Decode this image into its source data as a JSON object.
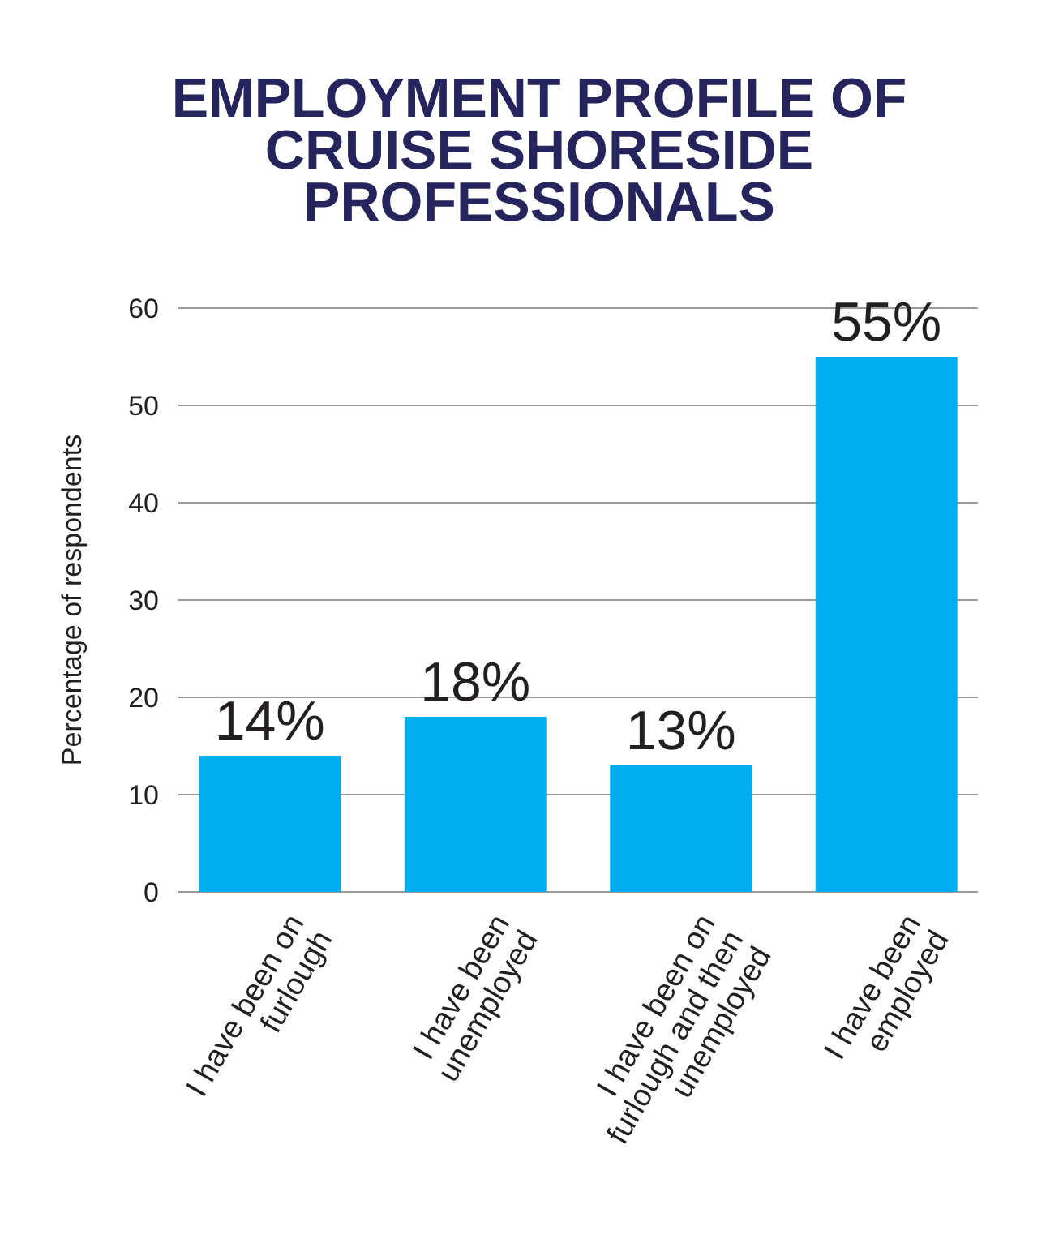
{
  "chart_data": {
    "type": "bar",
    "title": "EMPLOYMENT PROFILE OF CRUISE SHORESIDE PROFESSIONALS",
    "ylabel": "Percentage of respondents",
    "categories": [
      "I have been on furlough",
      "I have been unemployed",
      "I have been on furlough and then unemployed",
      "I have been employed"
    ],
    "values": [
      14,
      18,
      13,
      55
    ],
    "color": "#00aeef",
    "value_labels": [
      "14%",
      "18%",
      "13%",
      "55%"
    ],
    "ylim": [
      0,
      60
    ],
    "yticks": [
      0,
      10,
      20,
      30,
      40,
      50,
      60
    ],
    "grid": "y"
  }
}
